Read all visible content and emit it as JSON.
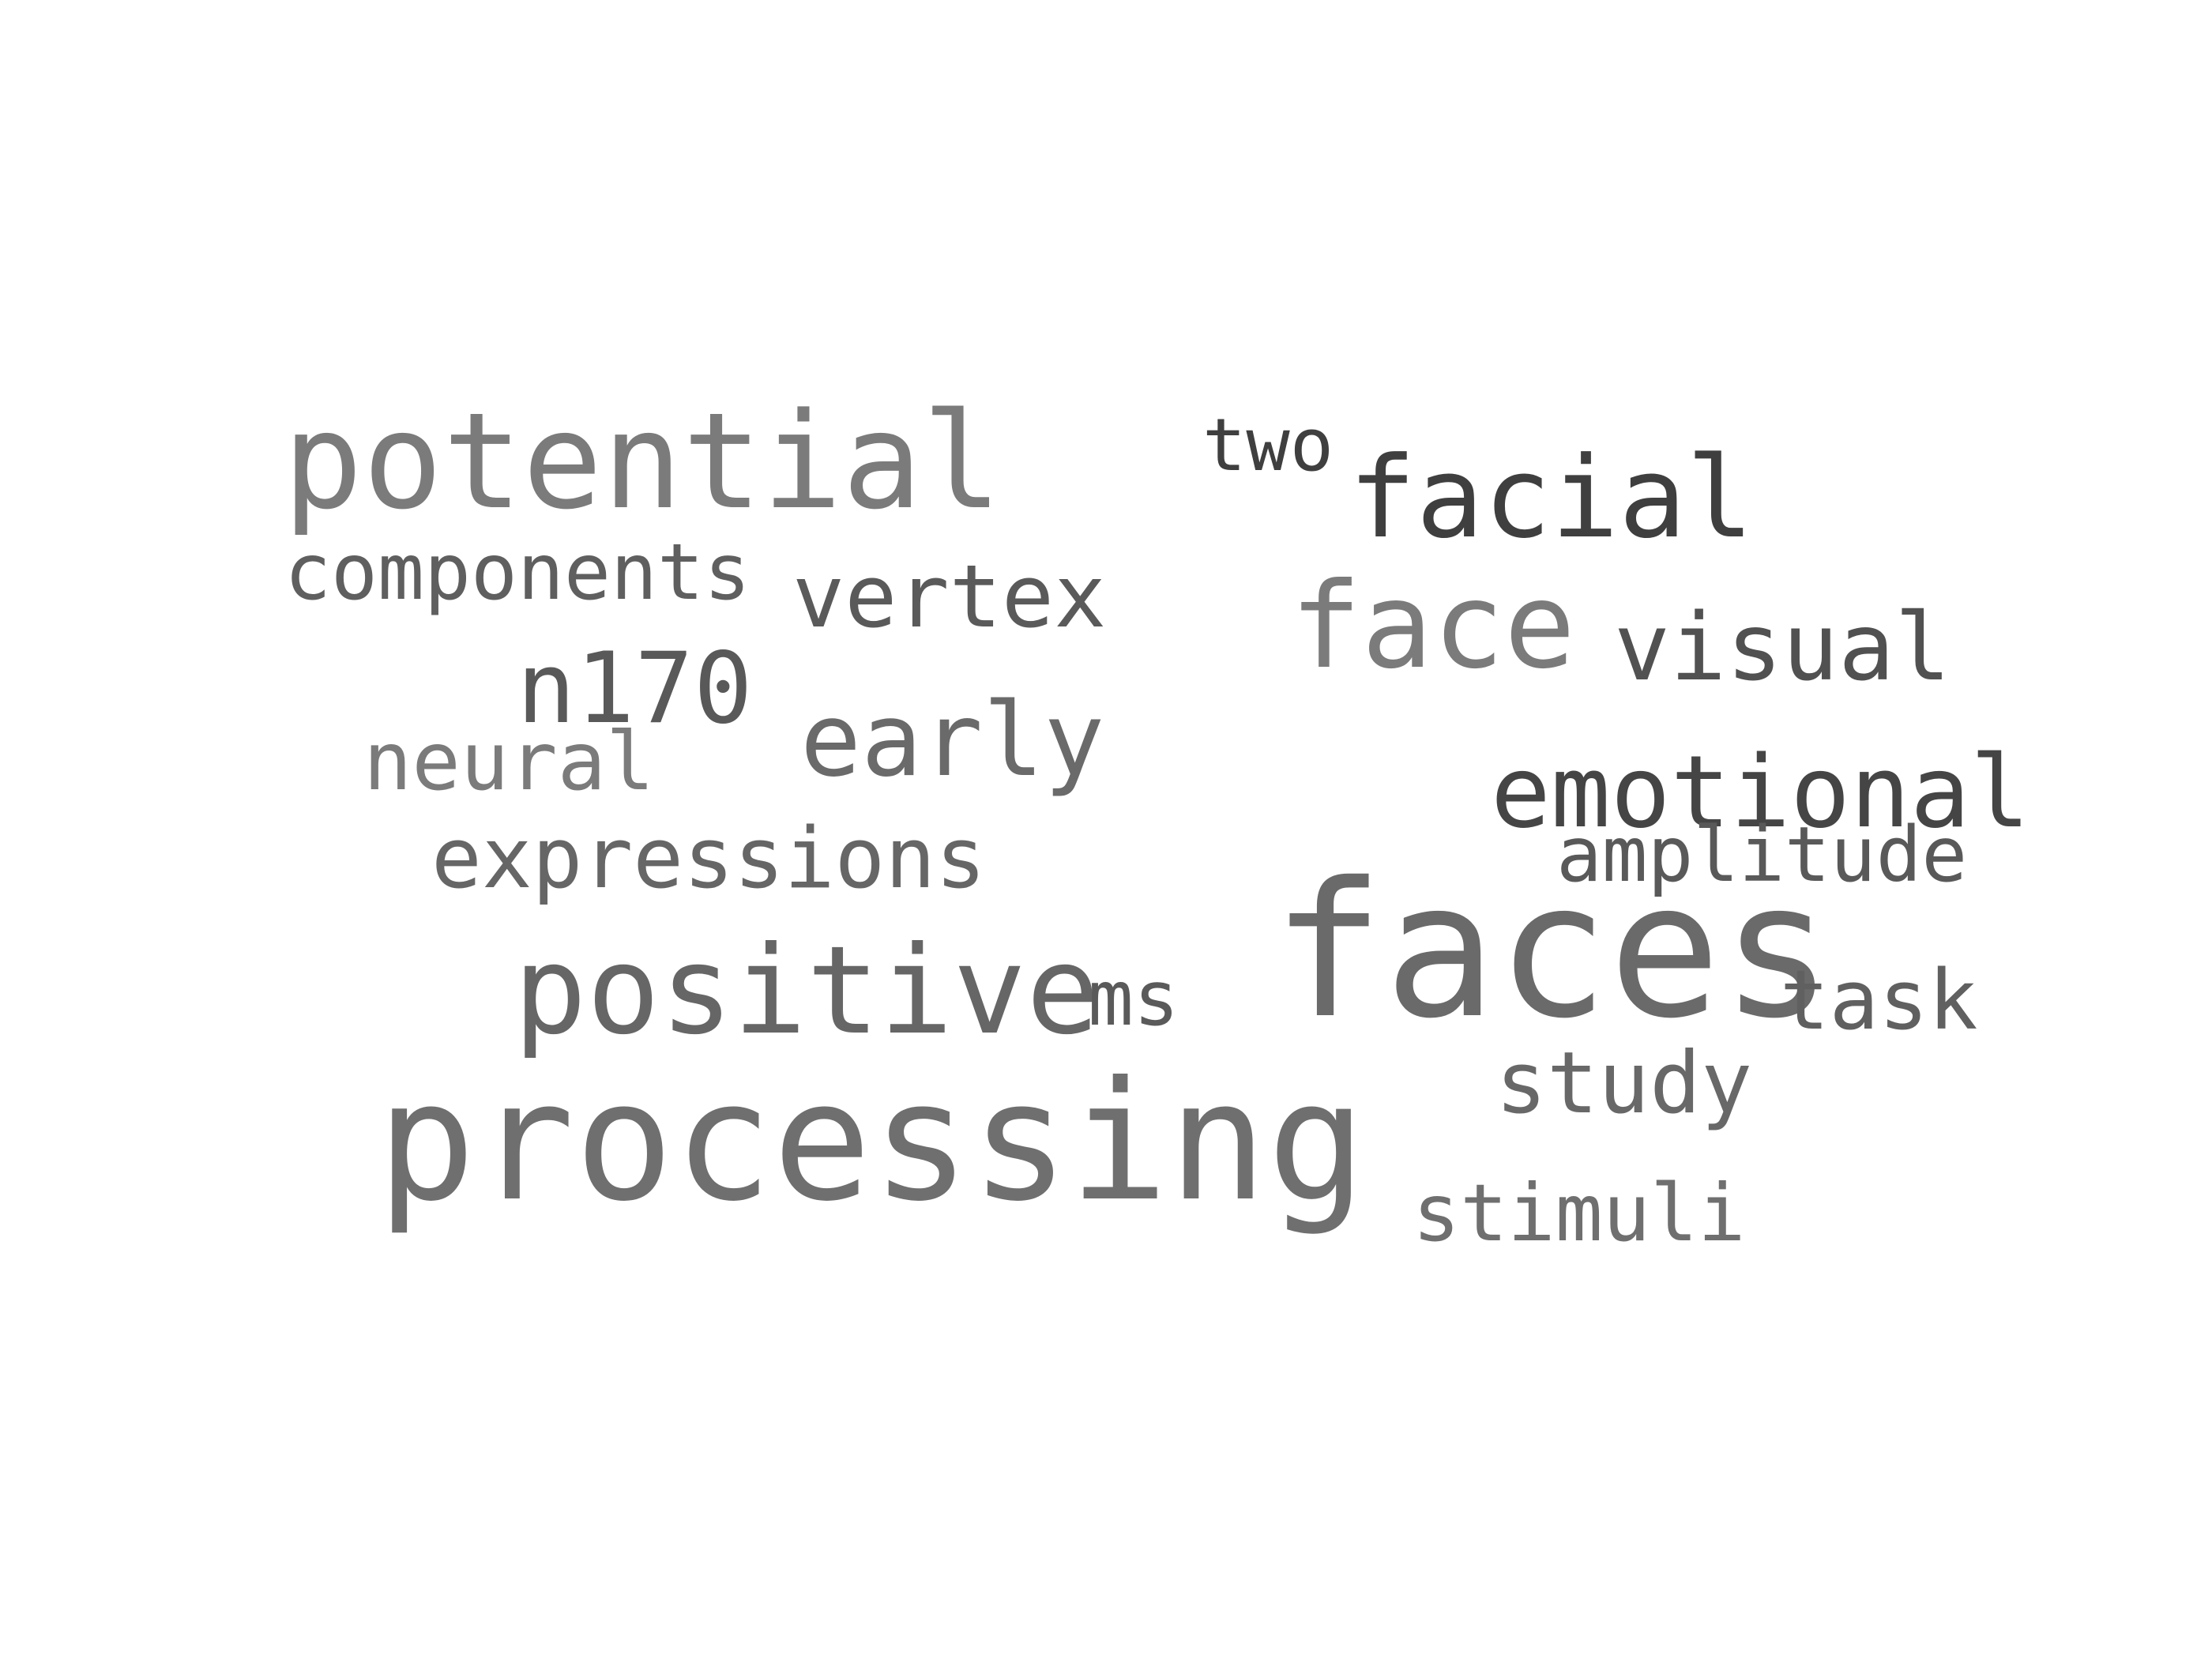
{
  "cloud": {
    "words": {
      "potential": "potential",
      "two": "two",
      "facial": "facial",
      "components": "components",
      "vertex": "vertex",
      "face": "face",
      "visual": "visual",
      "n170": "n170",
      "early": "early",
      "neural": "neural",
      "emotional": "emotional",
      "expressions": "expressions",
      "amplitude": "amplitude",
      "faces": "faces",
      "positive": "positive",
      "ms": "ms",
      "task": "task",
      "study": "study",
      "processing": "processing",
      "stimuli": "stimuli"
    }
  }
}
